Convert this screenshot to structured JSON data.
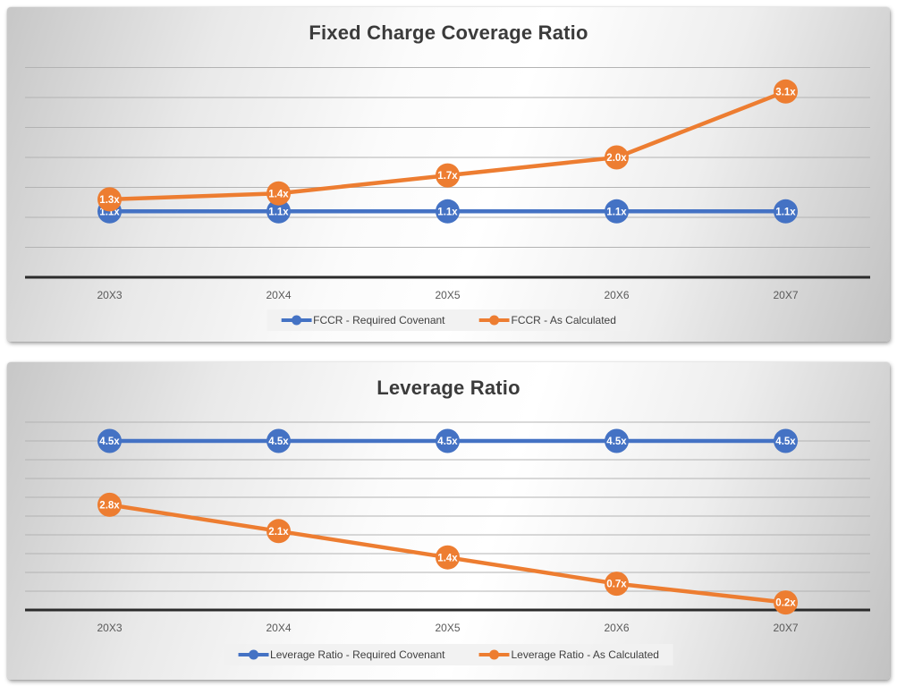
{
  "colors": {
    "series_blue": "#4472C4",
    "series_orange": "#ED7D31",
    "axis_line": "#2b2b2b",
    "gridline": "#b3b3b3",
    "tick_label": "#595959",
    "legend_text": "#3f3f3f",
    "title_text": "#3b3b3b",
    "data_label": "#ffffff",
    "panel_gray": "#c7c7c7"
  },
  "chart_data": [
    {
      "type": "line",
      "title": "Fixed Charge Coverage Ratio",
      "xlabel": "",
      "ylabel": "",
      "categories": [
        "20X3",
        "20X4",
        "20X5",
        "20X6",
        "20X7"
      ],
      "series": [
        {
          "name": "FCCR - Required Covenant",
          "color": "#4472C4",
          "values": [
            1.1,
            1.1,
            1.1,
            1.1,
            1.1
          ],
          "labels": [
            "1.1x",
            "1.1x",
            "1.1x",
            "1.1x",
            "1.1x"
          ]
        },
        {
          "name": "FCCR - As Calculated",
          "color": "#ED7D31",
          "values": [
            1.3,
            1.4,
            1.7,
            2.0,
            3.1
          ],
          "labels": [
            "1.3x",
            "1.4x",
            "1.7x",
            "2.0x",
            "3.1x"
          ]
        }
      ],
      "ylim": [
        0,
        3.5
      ],
      "gridline_step": 0.5,
      "grid": true,
      "legend_position": "bottom",
      "data_labels": "inside markers"
    },
    {
      "type": "line",
      "title": "Leverage Ratio",
      "xlabel": "",
      "ylabel": "",
      "categories": [
        "20X3",
        "20X4",
        "20X5",
        "20X6",
        "20X7"
      ],
      "series": [
        {
          "name": "Leverage Ratio - Required Covenant",
          "color": "#4472C4",
          "values": [
            4.5,
            4.5,
            4.5,
            4.5,
            4.5
          ],
          "labels": [
            "4.5x",
            "4.5x",
            "4.5x",
            "4.5x",
            "4.5x"
          ]
        },
        {
          "name": "Leverage Ratio - As Calculated",
          "color": "#ED7D31",
          "values": [
            2.8,
            2.1,
            1.4,
            0.7,
            0.2
          ],
          "labels": [
            "2.8x",
            "2.1x",
            "1.4x",
            "0.7x",
            "0.2x"
          ]
        }
      ],
      "ylim": [
        0,
        5.0
      ],
      "gridline_step": 0.5,
      "grid": true,
      "legend_position": "bottom",
      "data_labels": "inside markers"
    }
  ]
}
